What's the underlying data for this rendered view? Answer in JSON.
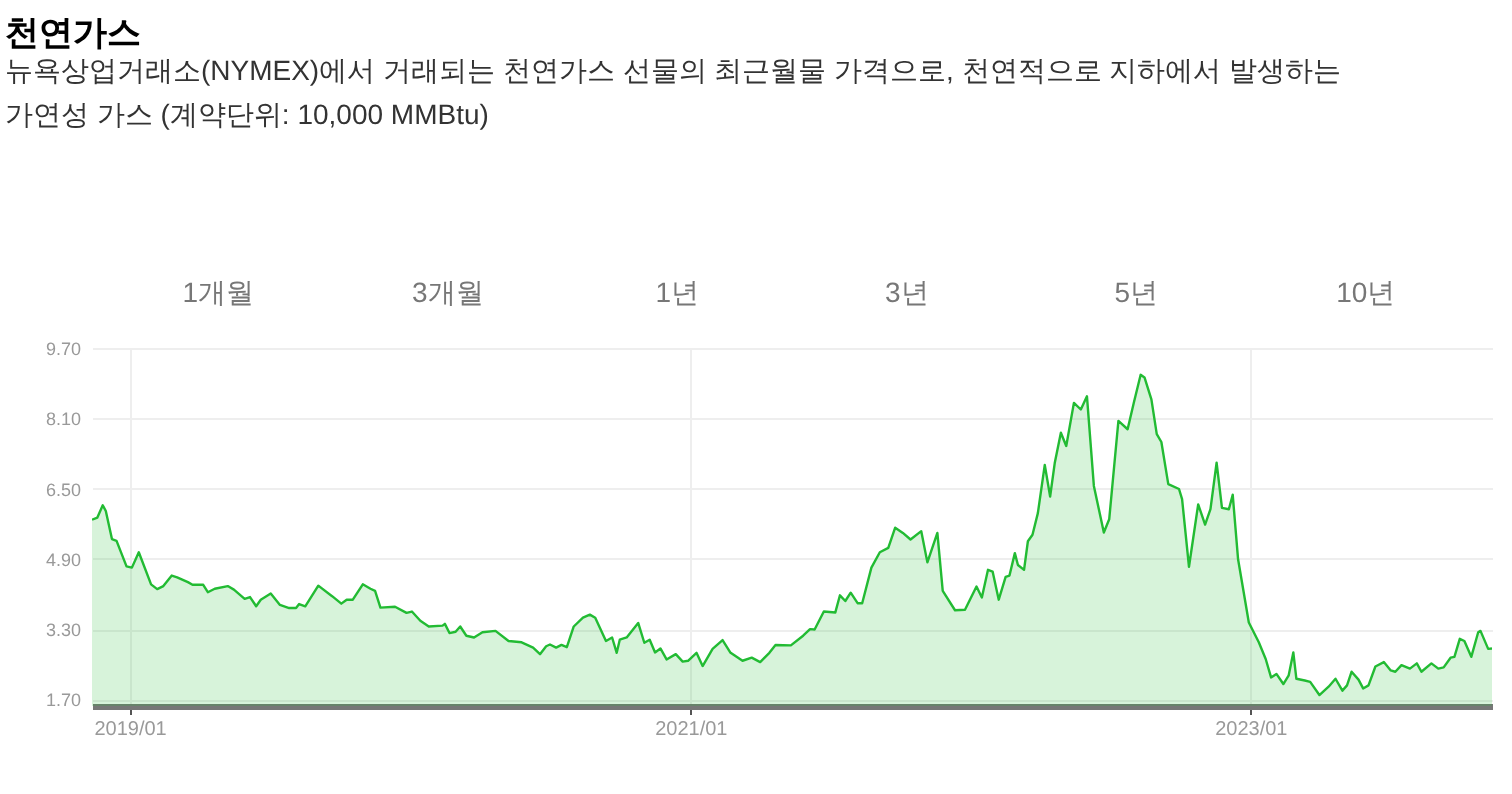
{
  "chart_data": {
    "type": "area",
    "title": "천연가스",
    "subtitle": "뉴욕상업거래소(NYMEX)에서 거래되는 천연가스 선물의 최근월물 가격으로, 천연적으로 지하에서 발생하는\n가연성 가스 (계약단위: 10,000 MMBtu)",
    "annotations": [
      "1개월",
      "3개월",
      "1년",
      "3년",
      "5년",
      "10년"
    ],
    "x": [
      "2018-11-13",
      "2018-11-20",
      "2018-11-27",
      "2018-12-01",
      "2018-12-09",
      "2018-12-15",
      "2018-12-28",
      "2019-01-04",
      "2019-01-13",
      "2019-01-29",
      "2019-02-06",
      "2019-02-14",
      "2019-02-25",
      "2019-03-04",
      "2019-03-18",
      "2019-03-24",
      "2019-04-07",
      "2019-04-13",
      "2019-04-22",
      "2019-05-09",
      "2019-05-17",
      "2019-05-31",
      "2019-06-07",
      "2019-06-15",
      "2019-06-21",
      "2019-07-04",
      "2019-07-16",
      "2019-07-28",
      "2019-08-06",
      "2019-08-10",
      "2019-08-18",
      "2019-09-04",
      "2019-09-22",
      "2019-10-04",
      "2019-10-11",
      "2019-10-19",
      "2019-11-01",
      "2019-11-11",
      "2019-11-17",
      "2019-11-24",
      "2019-12-13",
      "2019-12-28",
      "2020-01-04",
      "2020-01-15",
      "2020-01-26",
      "2020-02-13",
      "2020-02-16",
      "2020-02-22",
      "2020-03-01",
      "2020-03-07",
      "2020-03-15",
      "2020-03-25",
      "2020-04-05",
      "2020-04-22",
      "2020-05-09",
      "2020-05-26",
      "2020-06-10",
      "2020-06-19",
      "2020-06-27",
      "2020-07-02",
      "2020-07-10",
      "2020-07-17",
      "2020-07-24",
      "2020-08-02",
      "2020-08-14",
      "2020-08-23",
      "2020-08-30",
      "2020-09-13",
      "2020-09-21",
      "2020-09-27",
      "2020-10-01",
      "2020-10-10",
      "2020-10-25",
      "2020-11-02",
      "2020-11-09",
      "2020-11-16",
      "2020-11-23",
      "2020-12-01",
      "2020-12-13",
      "2020-12-22",
      "2020-12-29",
      "2021-01-09",
      "2021-01-17",
      "2021-01-30",
      "2021-02-12",
      "2021-02-22",
      "2021-03-10",
      "2021-03-22",
      "2021-04-02",
      "2021-04-14",
      "2021-04-22",
      "2021-05-12",
      "2021-05-28",
      "2021-06-06",
      "2021-06-12",
      "2021-06-24",
      "2021-07-09",
      "2021-07-15",
      "2021-07-22",
      "2021-07-29",
      "2021-08-07",
      "2021-08-13",
      "2021-08-25",
      "2021-09-05",
      "2021-09-16",
      "2021-09-25",
      "2021-10-05",
      "2021-10-15",
      "2021-10-29",
      "2021-11-06",
      "2021-11-19",
      "2021-11-26",
      "2021-12-12",
      "2021-12-25",
      "2022-01-09",
      "2022-01-16",
      "2022-01-24",
      "2022-01-30",
      "2022-02-07",
      "2022-02-16",
      "2022-02-21",
      "2022-02-28",
      "2022-03-04",
      "2022-03-12",
      "2022-03-17",
      "2022-03-23",
      "2022-03-30",
      "2022-04-08",
      "2022-04-15",
      "2022-04-21",
      "2022-04-29",
      "2022-05-06",
      "2022-05-16",
      "2022-05-25",
      "2022-06-02",
      "2022-06-11",
      "2022-06-24",
      "2022-07-01",
      "2022-07-13",
      "2022-07-25",
      "2022-08-02",
      "2022-08-11",
      "2022-08-16",
      "2022-08-25",
      "2022-09-01",
      "2022-09-07",
      "2022-09-16",
      "2022-09-30",
      "2022-10-04",
      "2022-10-13",
      "2022-10-25",
      "2022-11-03",
      "2022-11-10",
      "2022-11-18",
      "2022-11-25",
      "2022-12-04",
      "2022-12-09",
      "2022-12-16",
      "2022-12-30",
      "2023-01-12",
      "2023-01-21",
      "2023-01-28",
      "2023-02-04",
      "2023-02-13",
      "2023-02-20",
      "2023-02-26",
      "2023-03-02",
      "2023-03-13",
      "2023-03-20",
      "2023-04-01",
      "2023-04-13",
      "2023-04-22",
      "2023-05-01",
      "2023-05-07",
      "2023-05-13",
      "2023-05-22",
      "2023-05-28",
      "2023-06-04",
      "2023-06-13",
      "2023-06-24",
      "2023-07-03",
      "2023-07-09",
      "2023-07-17",
      "2023-07-28",
      "2023-08-06",
      "2023-08-12",
      "2023-08-25",
      "2023-09-03",
      "2023-09-10",
      "2023-09-19",
      "2023-09-24",
      "2023-10-01",
      "2023-10-07",
      "2023-10-16",
      "2023-10-25",
      "2023-10-28",
      "2023-11-07",
      "2023-11-12"
    ],
    "series": [
      {
        "color": "#22bb33",
        "values": [
          5.79,
          5.84,
          6.12,
          5.99,
          5.35,
          5.31,
          4.73,
          4.7,
          5.05,
          4.32,
          4.21,
          4.28,
          4.52,
          4.48,
          4.37,
          4.31,
          4.31,
          4.14,
          4.22,
          4.28,
          4.2,
          3.99,
          4.03,
          3.82,
          3.97,
          4.11,
          3.85,
          3.78,
          3.78,
          3.87,
          3.82,
          4.29,
          4.05,
          3.88,
          3.97,
          3.97,
          4.32,
          4.22,
          4.17,
          3.79,
          3.81,
          3.67,
          3.7,
          3.49,
          3.36,
          3.38,
          3.42,
          3.21,
          3.24,
          3.36,
          3.15,
          3.11,
          3.23,
          3.26,
          3.03,
          3.0,
          2.88,
          2.73,
          2.91,
          2.95,
          2.88,
          2.94,
          2.89,
          3.36,
          3.56,
          3.63,
          3.56,
          3.03,
          3.11,
          2.76,
          3.06,
          3.11,
          3.44,
          2.99,
          3.06,
          2.77,
          2.86,
          2.61,
          2.73,
          2.56,
          2.58,
          2.76,
          2.46,
          2.85,
          3.05,
          2.77,
          2.58,
          2.65,
          2.55,
          2.76,
          2.94,
          2.93,
          3.15,
          3.3,
          3.29,
          3.7,
          3.68,
          4.07,
          3.94,
          4.13,
          3.89,
          3.89,
          4.7,
          5.05,
          5.15,
          5.61,
          5.49,
          5.34,
          5.53,
          4.82,
          5.49,
          4.17,
          3.73,
          3.74,
          4.27,
          4.02,
          4.65,
          4.61,
          3.97,
          4.49,
          4.52,
          5.03,
          4.76,
          4.65,
          5.3,
          5.45,
          5.94,
          7.04,
          6.32,
          7.08,
          7.77,
          7.47,
          8.45,
          8.3,
          8.6,
          6.56,
          5.5,
          5.8,
          8.04,
          7.85,
          8.45,
          9.09,
          9.03,
          8.53,
          7.74,
          7.56,
          6.6,
          6.49,
          6.26,
          4.72,
          6.14,
          5.68,
          6.03,
          7.09,
          6.06,
          6.03,
          6.36,
          4.89,
          3.45,
          3.0,
          2.62,
          2.2,
          2.28,
          2.05,
          2.25,
          2.77,
          2.17,
          2.13,
          2.1,
          1.8,
          1.99,
          2.17,
          1.9,
          2.02,
          2.33,
          2.15,
          1.95,
          2.02,
          2.45,
          2.55,
          2.36,
          2.33,
          2.48,
          2.4,
          2.52,
          2.33,
          2.52,
          2.4,
          2.43,
          2.65,
          2.67,
          3.08,
          3.03,
          2.67,
          3.23,
          3.26,
          2.85,
          2.86
        ]
      }
    ],
    "xlim": [
      "2018-11-13",
      "2023-11-12"
    ],
    "xticks": [
      {
        "value": "2019-01",
        "label": "2019/01"
      },
      {
        "value": "2021-01",
        "label": "2021/01"
      },
      {
        "value": "2023-01",
        "label": "2023/01"
      }
    ],
    "ylim": [
      1.55,
      9.7
    ],
    "yticks": [
      {
        "value": 1.7,
        "label": "1.70"
      },
      {
        "value": 3.3,
        "label": "3.30"
      },
      {
        "value": 4.9,
        "label": "4.90"
      },
      {
        "value": 6.5,
        "label": "6.50"
      },
      {
        "value": 8.1,
        "label": "8.10"
      },
      {
        "value": 9.7,
        "label": "9.70"
      }
    ],
    "grid": true,
    "marker": "none",
    "line_style": "solid"
  }
}
